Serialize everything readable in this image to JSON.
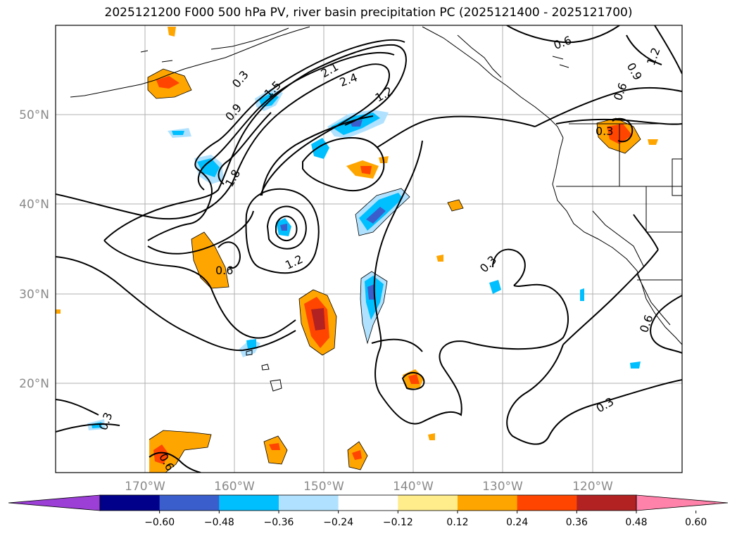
{
  "title": "2025121200 F000 500 hPa PV, river basin precipitation PC (2025121400 - 2025121700)",
  "map": {
    "lat_ticks": [
      {
        "value": 50,
        "label": "50°N"
      },
      {
        "value": 40,
        "label": "40°N"
      },
      {
        "value": 30,
        "label": "30°N"
      },
      {
        "value": 20,
        "label": "20°N"
      }
    ],
    "lon_ticks": [
      {
        "value": -170,
        "label": "170°W"
      },
      {
        "value": -160,
        "label": "160°W"
      },
      {
        "value": -150,
        "label": "150°W"
      },
      {
        "value": -140,
        "label": "140°W"
      },
      {
        "value": -130,
        "label": "130°W"
      },
      {
        "value": -120,
        "label": "120°W"
      }
    ],
    "contour_labels": [
      "0.3",
      "0.6",
      "0.9",
      "1.2",
      "1.5",
      "1.8",
      "2.1",
      "2.4",
      "0.3",
      "0.6",
      "1.2",
      "0.6",
      "0.3",
      "0.3",
      "0.6",
      "0.9",
      "1.2",
      "0.3",
      "0.6",
      "0.3",
      "0.3",
      "1.2"
    ]
  },
  "colorbar": {
    "bins": [
      {
        "color": "#9b3fd6"
      },
      {
        "color": "#00008b"
      },
      {
        "color": "#3a5fcd"
      },
      {
        "color": "#00bfff"
      },
      {
        "color": "#b0e2ff"
      },
      {
        "color": "#ffffff"
      },
      {
        "color": "#ffec8b"
      },
      {
        "color": "#ffa500"
      },
      {
        "color": "#ff4500"
      },
      {
        "color": "#b22222"
      },
      {
        "color": "#ff82ab"
      }
    ],
    "tick_labels": [
      "−0.60",
      "−0.48",
      "−0.36",
      "−0.24",
      "−0.12",
      "0.12",
      "0.24",
      "0.36",
      "0.48",
      "0.60"
    ]
  }
}
